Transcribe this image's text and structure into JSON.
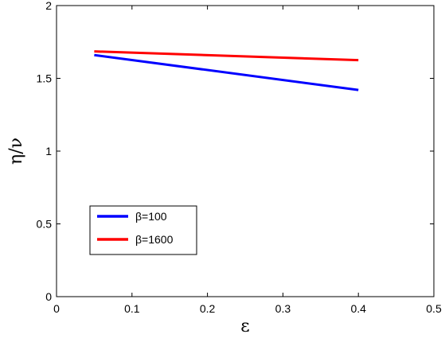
{
  "chart_data": {
    "type": "line",
    "xlabel": "ε",
    "ylabel": "η/ν",
    "xlim": [
      0,
      0.5
    ],
    "ylim": [
      0,
      2
    ],
    "xticks": [
      0,
      0.1,
      0.2,
      0.3,
      0.4,
      0.5
    ],
    "yticks": [
      0,
      0.5,
      1,
      1.5,
      2
    ],
    "xtick_labels": [
      "0",
      "0.1",
      "0.2",
      "0.3",
      "0.4",
      "0.5"
    ],
    "ytick_labels": [
      "0",
      "0.5",
      "1",
      "1.5",
      "2"
    ],
    "grid": false,
    "legend_position": "lower-left",
    "series": [
      {
        "name": "β=100",
        "color": "#0000ff",
        "x": [
          0.05,
          0.4
        ],
        "y": [
          1.66,
          1.42
        ]
      },
      {
        "name": "β=1600",
        "color": "#ff0000",
        "x": [
          0.05,
          0.4
        ],
        "y": [
          1.685,
          1.625
        ]
      }
    ]
  }
}
